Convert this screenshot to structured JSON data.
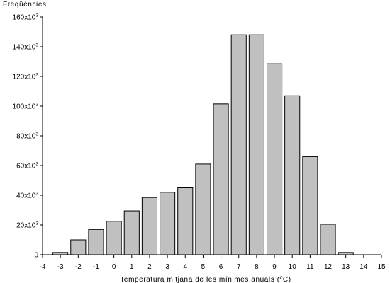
{
  "chart_data": {
    "type": "bar",
    "title": "",
    "ylabel": "Freqüències",
    "xlabel": "Temperatura mitjana de les mínimes anuals (ºC)",
    "x": [
      -3,
      -2,
      -1,
      0,
      1,
      2,
      3,
      4,
      5,
      6,
      7,
      8,
      9,
      10,
      11,
      12,
      13
    ],
    "values": [
      1500,
      10000,
      17000,
      22500,
      29500,
      38500,
      42000,
      45000,
      61000,
      101500,
      148000,
      148000,
      128500,
      107000,
      66000,
      20500,
      1500
    ],
    "xlim": [
      -4,
      15
    ],
    "ylim": [
      0,
      160000
    ],
    "xticks": [
      "-4",
      "-3",
      "-2",
      "-1",
      "0",
      "1",
      "2",
      "3",
      "4",
      "5",
      "6",
      "7",
      "8",
      "9",
      "10",
      "11",
      "12",
      "13",
      "14",
      "15"
    ],
    "yticks": [
      {
        "value": 0,
        "base": "0",
        "exp": ""
      },
      {
        "value": 20000,
        "base": "20x10",
        "exp": "3"
      },
      {
        "value": 40000,
        "base": "40x10",
        "exp": "3"
      },
      {
        "value": 60000,
        "base": "60x10",
        "exp": "3"
      },
      {
        "value": 80000,
        "base": "80x10",
        "exp": "3"
      },
      {
        "value": 100000,
        "base": "100x10",
        "exp": "3"
      },
      {
        "value": 120000,
        "base": "120x10",
        "exp": "3"
      },
      {
        "value": 140000,
        "base": "140x10",
        "exp": "3"
      },
      {
        "value": 160000,
        "base": "160x10",
        "exp": "3"
      }
    ],
    "grid": false,
    "colors": {
      "bar": "#c0c0c0",
      "edge": "#000000"
    }
  }
}
